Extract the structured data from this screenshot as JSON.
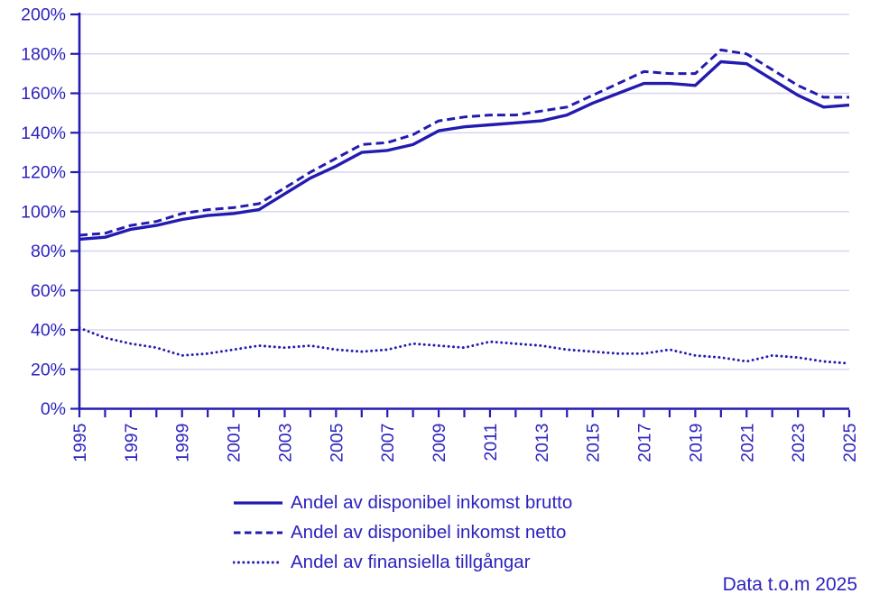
{
  "colors": {
    "text": "#2d23be",
    "line": "#231bb0",
    "gridline": "#d8d5f0",
    "background": "#ffffff"
  },
  "note": "Data t.o.m 2025",
  "chart_data": {
    "type": "line",
    "title": "",
    "xlabel": "",
    "ylabel": "",
    "unit": "percent",
    "grid": true,
    "legend_position": "bottom",
    "ylim": [
      0,
      200
    ],
    "ytick_labels": [
      "0%",
      "20%",
      "40%",
      "60%",
      "80%",
      "100%",
      "120%",
      "140%",
      "160%",
      "180%",
      "200%"
    ],
    "xtick_labels": [
      "1995",
      "1997",
      "1999",
      "2001",
      "2003",
      "2005",
      "2007",
      "2009",
      "2011",
      "2013",
      "2015",
      "2017",
      "2019",
      "2021",
      "2023",
      "2025"
    ],
    "x": [
      1995,
      1996,
      1997,
      1998,
      1999,
      2000,
      2001,
      2002,
      2003,
      2004,
      2005,
      2006,
      2007,
      2008,
      2009,
      2010,
      2011,
      2012,
      2013,
      2014,
      2015,
      2016,
      2017,
      2018,
      2019,
      2020,
      2021,
      2022,
      2023,
      2024,
      2025
    ],
    "series": [
      {
        "name": "Andel av disponibel inkomst brutto",
        "style": "solid",
        "values": [
          86,
          87,
          91,
          93,
          96,
          98,
          99,
          101,
          109,
          117,
          123,
          130,
          131,
          134,
          141,
          143,
          144,
          145,
          146,
          149,
          155,
          160,
          165,
          165,
          164,
          176,
          175,
          167,
          159,
          153,
          154
        ]
      },
      {
        "name": "Andel av disponibel inkomst netto",
        "style": "dashed",
        "values": [
          88,
          89,
          93,
          95,
          99,
          101,
          102,
          104,
          112,
          120,
          127,
          134,
          135,
          139,
          146,
          148,
          149,
          149,
          151,
          153,
          159,
          165,
          171,
          170,
          170,
          182,
          180,
          172,
          164,
          158,
          158
        ]
      },
      {
        "name": "Andel av finansiella tillgångar",
        "style": "dotted",
        "values": [
          41,
          36,
          33,
          31,
          27,
          28,
          30,
          32,
          31,
          32,
          30,
          29,
          30,
          33,
          32,
          31,
          34,
          33,
          32,
          30,
          29,
          28,
          28,
          30,
          27,
          26,
          24,
          27,
          26,
          24,
          23
        ]
      }
    ]
  }
}
